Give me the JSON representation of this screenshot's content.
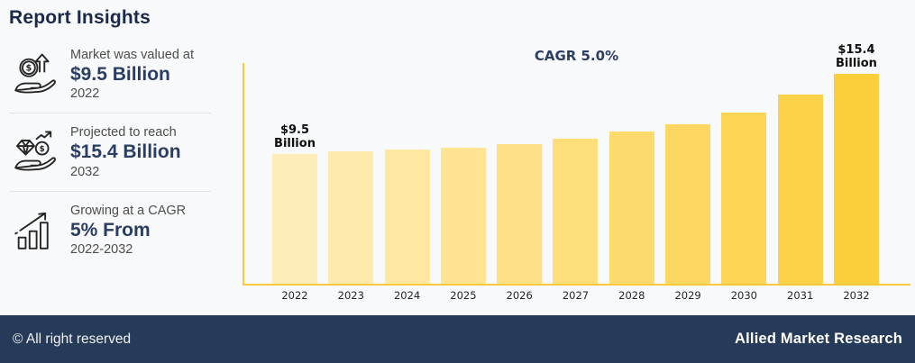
{
  "sidebar": {
    "title": "Report Insights",
    "items": [
      {
        "icon": "money-growth-hand-icon",
        "caption": "Market was valued at",
        "value": "$9.5 Billion",
        "period": "2022"
      },
      {
        "icon": "gem-money-hand-icon",
        "caption": "Projected to reach",
        "value": "$15.4 Billion",
        "period": "2032"
      },
      {
        "icon": "growth-arrow-chart-icon",
        "caption": "Growing at a CAGR",
        "value": "5% From",
        "period": "2022-2032"
      }
    ]
  },
  "chart_data": {
    "type": "bar",
    "title": "",
    "categories": [
      "2022",
      "2023",
      "2024",
      "2025",
      "2026",
      "2027",
      "2028",
      "2029",
      "2030",
      "2031",
      "2032"
    ],
    "values": [
      9.5,
      9.7,
      9.85,
      10.0,
      10.25,
      10.65,
      11.15,
      11.7,
      12.55,
      13.85,
      15.4
    ],
    "unit": "USD Billion",
    "ylim": [
      0,
      16.3
    ],
    "grid": false,
    "legend": "none",
    "cagr_annotation": "CAGR 5.0%",
    "annotations": [
      {
        "index": 0,
        "lines": [
          "$9.5",
          "Billion"
        ]
      },
      {
        "index": 10,
        "lines": [
          "$15.4",
          "Billion"
        ]
      }
    ],
    "bar_color_start": "#FEEDB9",
    "bar_color_end": "#FDCE3B",
    "axis_color": "#FBC93B"
  },
  "footer": {
    "copyright": "© All right reserved",
    "brand": "Allied Market Research",
    "background": "#263A59"
  }
}
